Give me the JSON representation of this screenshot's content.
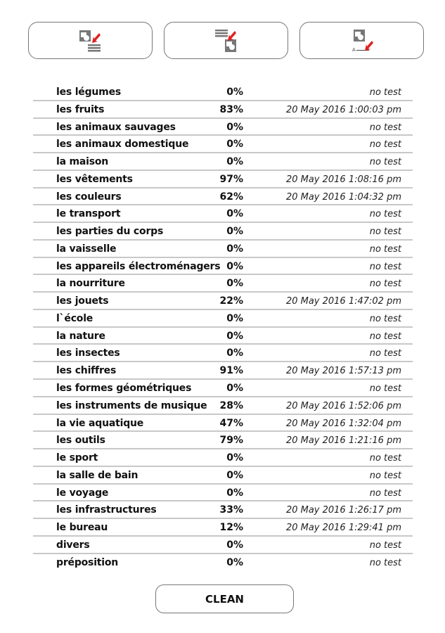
{
  "toolbar": {
    "buttons": [
      {
        "icon": "image-to-text-icon"
      },
      {
        "icon": "text-to-image-icon"
      },
      {
        "icon": "image-to-letters-icon",
        "icon_letter": "A"
      }
    ]
  },
  "colors": {
    "accent": "#e02020",
    "icon_gray": "#777777",
    "divider": "#c8c8c8"
  },
  "rows": [
    {
      "name": "les légumes",
      "score": "0%",
      "date": "no test"
    },
    {
      "name": "les fruits",
      "score": "83%",
      "date": "20 May 2016 1:00:03 pm"
    },
    {
      "name": "les animaux sauvages",
      "score": "0%",
      "date": "no test"
    },
    {
      "name": "les animaux domestique",
      "score": "0%",
      "date": "no test"
    },
    {
      "name": "la maison",
      "score": "0%",
      "date": "no test"
    },
    {
      "name": "les vêtements",
      "score": "97%",
      "date": "20 May 2016 1:08:16 pm"
    },
    {
      "name": "les couleurs",
      "score": "62%",
      "date": "20 May 2016 1:04:32 pm"
    },
    {
      "name": "le transport",
      "score": "0%",
      "date": "no test"
    },
    {
      "name": "les parties du corps",
      "score": "0%",
      "date": "no test"
    },
    {
      "name": "la vaisselle",
      "score": "0%",
      "date": "no test"
    },
    {
      "name": "les appareils électroménagers",
      "score": "0%",
      "date": "no test"
    },
    {
      "name": "la nourriture",
      "score": "0%",
      "date": "no test"
    },
    {
      "name": "les jouets",
      "score": "22%",
      "date": "20 May 2016 1:47:02 pm"
    },
    {
      "name": "l`école",
      "score": "0%",
      "date": "no test"
    },
    {
      "name": "la nature",
      "score": "0%",
      "date": "no test"
    },
    {
      "name": "les insectes",
      "score": "0%",
      "date": "no test"
    },
    {
      "name": "les chiffres",
      "score": "91%",
      "date": "20 May 2016 1:57:13 pm"
    },
    {
      "name": "les formes géométriques",
      "score": "0%",
      "date": "no test"
    },
    {
      "name": "les instruments de musique",
      "score": "28%",
      "date": "20 May 2016 1:52:06 pm"
    },
    {
      "name": "la vie aquatique",
      "score": "47%",
      "date": "20 May 2016 1:32:04 pm"
    },
    {
      "name": "les outils",
      "score": "79%",
      "date": "20 May 2016 1:21:16 pm"
    },
    {
      "name": "le sport",
      "score": "0%",
      "date": "no test"
    },
    {
      "name": "la salle de bain",
      "score": "0%",
      "date": "no test"
    },
    {
      "name": "le voyage",
      "score": "0%",
      "date": "no test"
    },
    {
      "name": "les infrastructures",
      "score": "33%",
      "date": "20 May 2016 1:26:17 pm"
    },
    {
      "name": "le bureau",
      "score": "12%",
      "date": "20 May 2016 1:29:41 pm"
    },
    {
      "name": "divers",
      "score": "0%",
      "date": "no test"
    },
    {
      "name": "préposition",
      "score": "0%",
      "date": "no test"
    }
  ],
  "clean_label": "CLEAN"
}
